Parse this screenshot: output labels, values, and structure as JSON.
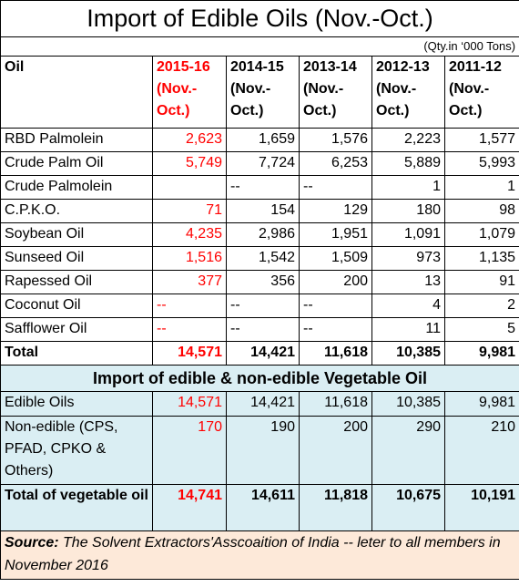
{
  "title": "Import of Edible Oils (Nov.-Oct.)",
  "unit_note": "(Qty.in ‘000 Tons)",
  "table": {
    "header": [
      "Oil",
      "2015-16 (Nov.-Oct.)",
      "2014-15 (Nov.-Oct.)",
      "2013-14 (Nov.-Oct.)",
      "2012-13 (Nov.-Oct.)",
      "2011-12 (Nov.-Oct.)"
    ],
    "rows": [
      [
        "RBD Palmolein",
        "2,623",
        "1,659",
        "1,576",
        "2,223",
        "1,577"
      ],
      [
        "Crude Palm Oil",
        "5,749",
        "7,724",
        "6,253",
        "5,889",
        "5,993"
      ],
      [
        "Crude Palmolein",
        null,
        "--",
        "--",
        "1",
        "1"
      ],
      [
        "C.P.K.O.",
        "71",
        "154",
        "129",
        "180",
        "98"
      ],
      [
        "Soybean Oil",
        "4,235",
        "2,986",
        "1,951",
        "1,091",
        "1,079"
      ],
      [
        "Sunseed Oil",
        "1,516",
        "1,542",
        "1,509",
        "973",
        "1,135"
      ],
      [
        "Rapessed Oil",
        "377",
        "356",
        "200",
        "13",
        "91"
      ],
      [
        "Coconut Oil",
        "--",
        "--",
        "--",
        "4",
        "2"
      ],
      [
        "Safflower Oil",
        "--",
        "--",
        "--",
        "11",
        "5"
      ]
    ],
    "total": [
      "Total",
      "14,571",
      "14,421",
      "11,618",
      "10,385",
      "9,981"
    ]
  },
  "section2": {
    "title": "Import of edible & non-edible Vegetable Oil",
    "rows": [
      [
        "Edible Oils",
        "14,571",
        "14,421",
        "11,618",
        "10,385",
        "9,981"
      ],
      [
        "Non-edible (CPS, PFAD, CPKO & Others)",
        "170",
        "190",
        "200",
        "290",
        "210"
      ]
    ],
    "total": [
      "Total of vegetable oil",
      "14,741",
      "14,611",
      "11,818",
      "10,675",
      "10,191"
    ]
  },
  "source": {
    "label": "Source:",
    "text": "The Solvent Extractors'Asscoaition of India -- leter to all members in November 2016"
  }
}
